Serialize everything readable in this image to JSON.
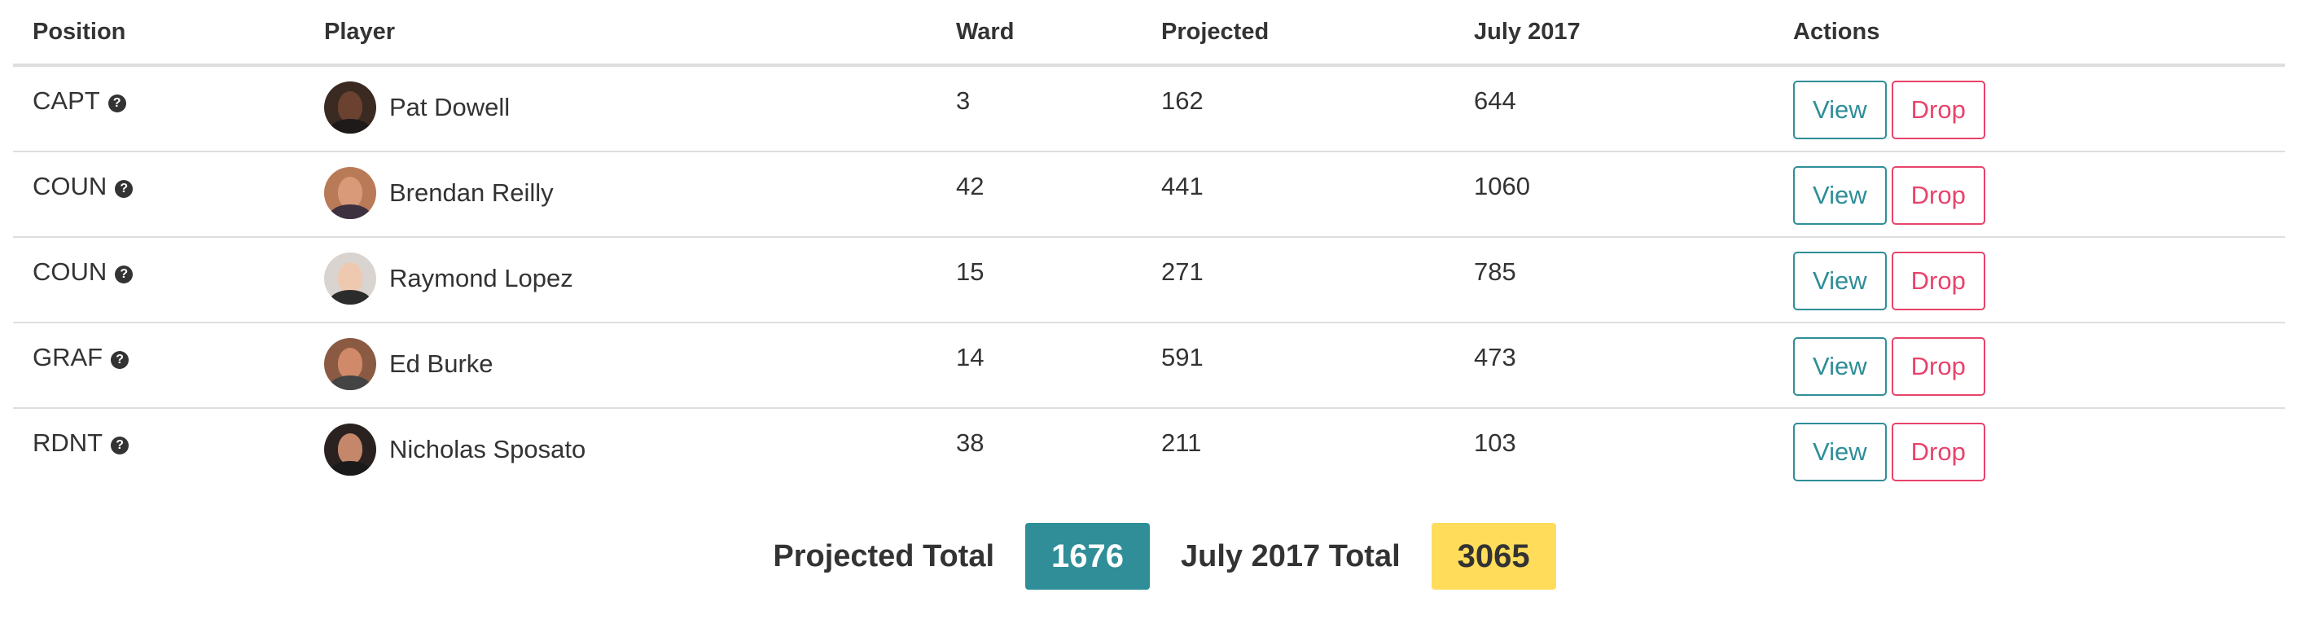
{
  "table": {
    "headers": [
      "Position",
      "Player",
      "Ward",
      "Projected",
      "July 2017",
      "Actions"
    ],
    "help_glyph": "?",
    "rows": [
      {
        "position": "CAPT",
        "player": "Pat Dowell",
        "ward": "3",
        "projected": "162",
        "july": "644",
        "view": "View",
        "drop": "Drop",
        "avatar_skin": "#6b4230",
        "avatar_bg": "#3a2a22",
        "avatar_cloth": "#1e1a1a"
      },
      {
        "position": "COUN",
        "player": "Brendan Reilly",
        "ward": "42",
        "projected": "441",
        "july": "1060",
        "view": "View",
        "drop": "Drop",
        "avatar_skin": "#d99a79",
        "avatar_bg": "#b97a58",
        "avatar_cloth": "#3d3140"
      },
      {
        "position": "COUN",
        "player": "Raymond Lopez",
        "ward": "15",
        "projected": "271",
        "july": "785",
        "view": "View",
        "drop": "Drop",
        "avatar_skin": "#efc8b0",
        "avatar_bg": "#d9d4d0",
        "avatar_cloth": "#2c2c2c"
      },
      {
        "position": "GRAF",
        "player": "Ed Burke",
        "ward": "14",
        "projected": "591",
        "july": "473",
        "view": "View",
        "drop": "Drop",
        "avatar_skin": "#d08a6a",
        "avatar_bg": "#8b5a42",
        "avatar_cloth": "#444444"
      },
      {
        "position": "RDNT",
        "player": "Nicholas Sposato",
        "ward": "38",
        "projected": "211",
        "july": "103",
        "view": "View",
        "drop": "Drop",
        "avatar_skin": "#c4876a",
        "avatar_bg": "#2a2220",
        "avatar_cloth": "#1a1a1a"
      }
    ]
  },
  "totals": {
    "projected_label": "Projected Total",
    "projected_value": "1676",
    "projected_color": "#2f8e98",
    "july_label": "July 2017 Total",
    "july_value": "3065",
    "july_color": "#ffdc5a"
  },
  "colors": {
    "view": "#2f8e98",
    "drop": "#e8436b"
  }
}
